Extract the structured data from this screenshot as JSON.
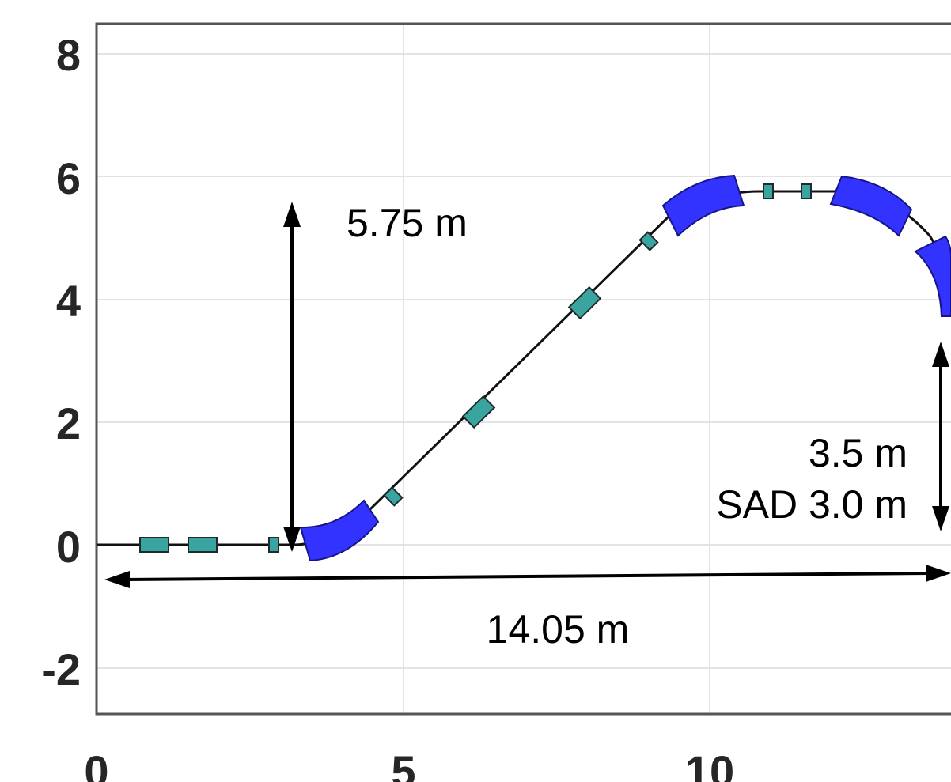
{
  "axes": {
    "y_ticks": [
      "8",
      "6",
      "4",
      "2",
      "0",
      "-2"
    ],
    "x_ticks": [
      "0",
      "5",
      "10"
    ],
    "grid": true
  },
  "annotations": {
    "height": "5.75 m",
    "drop": "3.5 m",
    "sad": "SAD 3.0 m",
    "length": "14.05 m"
  },
  "colors": {
    "dipole": "#3333ff",
    "quadrupole": "#3aa5a0",
    "beamline": "#111111",
    "grid": "#e3e3e3",
    "frame": "#555555"
  }
}
